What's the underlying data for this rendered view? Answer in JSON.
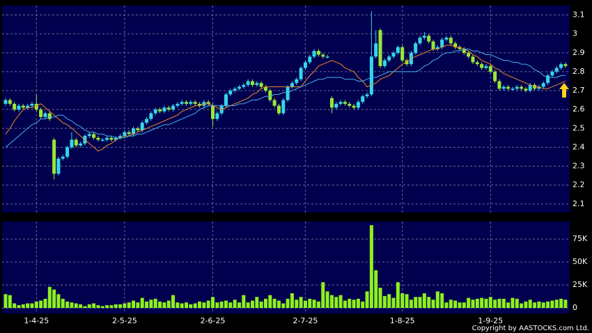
{
  "chart_data": [
    {
      "type": "candlestick",
      "categories": [
        null,
        null,
        null,
        null,
        null,
        null,
        null,
        "1-4-25",
        null,
        null,
        null,
        null,
        null,
        null,
        null,
        null,
        null,
        null,
        null,
        null,
        null,
        null,
        null,
        null,
        null,
        null,
        null,
        "2-5-25",
        null,
        null,
        null,
        null,
        null,
        null,
        null,
        null,
        null,
        null,
        null,
        null,
        null,
        null,
        null,
        null,
        null,
        null,
        null,
        "2-6-25",
        null,
        null,
        null,
        null,
        null,
        null,
        null,
        null,
        null,
        null,
        null,
        null,
        null,
        null,
        null,
        null,
        null,
        null,
        null,
        null,
        "2-7-25",
        null,
        null,
        null,
        null,
        null,
        null,
        null,
        null,
        null,
        null,
        null,
        null,
        null,
        null,
        null,
        null,
        null,
        null,
        null,
        null,
        null,
        "1-8-25",
        null,
        null,
        null,
        null,
        null,
        null,
        null,
        null,
        null,
        null,
        null,
        null,
        null,
        null,
        null,
        null,
        null,
        null,
        null,
        "1-9-25",
        null,
        null,
        null,
        null,
        null,
        null,
        null,
        null,
        null,
        null,
        null,
        null,
        null,
        null,
        null,
        null,
        null
      ],
      "open": [
        2.63,
        2.65,
        2.63,
        2.6,
        2.62,
        2.61,
        2.62,
        2.63,
        2.6,
        2.56,
        2.58,
        2.44,
        2.26,
        2.34,
        2.35,
        2.4,
        2.44,
        2.41,
        2.42,
        2.46,
        2.47,
        2.45,
        2.44,
        2.44,
        2.45,
        2.44,
        2.45,
        2.46,
        2.48,
        2.47,
        2.5,
        2.49,
        2.53,
        2.55,
        2.58,
        2.6,
        2.59,
        2.61,
        2.6,
        2.62,
        2.63,
        2.64,
        2.63,
        2.64,
        2.63,
        2.62,
        2.64,
        2.62,
        2.55,
        2.58,
        2.62,
        2.68,
        2.7,
        2.71,
        2.72,
        2.73,
        2.75,
        2.73,
        2.74,
        2.72,
        2.7,
        2.65,
        2.62,
        2.58,
        2.65,
        2.72,
        2.74,
        2.76,
        2.82,
        2.85,
        2.88,
        2.91,
        2.89,
        2.88,
        2.66,
        2.61,
        2.63,
        2.64,
        2.63,
        2.62,
        2.61,
        2.64,
        2.67,
        2.68,
        2.88,
        3.02,
        2.83,
        2.86,
        2.88,
        2.9,
        2.93,
        2.86,
        2.84,
        2.9,
        2.95,
        2.98,
        2.99,
        2.96,
        2.92,
        2.93,
        2.97,
        2.98,
        2.95,
        2.93,
        2.92,
        2.9,
        2.88,
        2.85,
        2.84,
        2.82,
        2.83,
        2.8,
        2.75,
        2.71,
        2.72,
        2.71,
        2.71,
        2.72,
        2.71,
        2.7,
        2.73,
        2.71,
        2.72,
        2.74,
        2.78,
        2.8,
        2.82,
        2.84
      ],
      "high": [
        2.66,
        2.66,
        2.64,
        2.63,
        2.63,
        2.63,
        2.64,
        2.68,
        2.61,
        2.59,
        2.59,
        2.45,
        2.35,
        2.36,
        2.41,
        2.48,
        2.45,
        2.43,
        2.47,
        2.48,
        2.48,
        2.46,
        2.45,
        2.46,
        2.46,
        2.46,
        2.47,
        2.49,
        2.49,
        2.51,
        2.51,
        2.54,
        2.56,
        2.59,
        2.61,
        2.61,
        2.62,
        2.62,
        2.63,
        2.64,
        2.65,
        2.65,
        2.65,
        2.65,
        2.64,
        2.65,
        2.65,
        2.63,
        2.59,
        2.63,
        2.69,
        2.71,
        2.72,
        2.73,
        2.74,
        2.76,
        2.76,
        2.75,
        2.75,
        2.73,
        2.71,
        2.66,
        2.63,
        2.66,
        2.73,
        2.75,
        2.77,
        2.83,
        2.86,
        2.89,
        2.92,
        2.92,
        2.9,
        2.89,
        2.67,
        2.64,
        2.65,
        2.65,
        2.64,
        2.63,
        2.65,
        2.68,
        2.69,
        3.12,
        3.02,
        3.03,
        2.87,
        2.89,
        2.91,
        2.94,
        2.94,
        2.87,
        2.91,
        2.96,
        2.99,
        3.01,
        3.0,
        2.97,
        2.94,
        2.98,
        2.99,
        2.99,
        2.96,
        2.94,
        2.93,
        2.91,
        2.89,
        2.86,
        2.85,
        2.84,
        2.84,
        2.81,
        2.76,
        2.73,
        2.73,
        2.72,
        2.73,
        2.73,
        2.72,
        2.74,
        2.74,
        2.73,
        2.75,
        2.79,
        2.81,
        2.83,
        2.85,
        2.85
      ],
      "low": [
        2.62,
        2.62,
        2.59,
        2.59,
        2.6,
        2.6,
        2.61,
        2.59,
        2.55,
        2.55,
        2.54,
        2.23,
        2.25,
        2.33,
        2.34,
        2.39,
        2.4,
        2.4,
        2.41,
        2.45,
        2.44,
        2.43,
        2.43,
        2.43,
        2.43,
        2.43,
        2.44,
        2.45,
        2.46,
        2.46,
        2.48,
        2.48,
        2.52,
        2.54,
        2.57,
        2.58,
        2.58,
        2.59,
        2.59,
        2.61,
        2.62,
        2.62,
        2.62,
        2.62,
        2.61,
        2.61,
        2.62,
        2.51,
        2.54,
        2.57,
        2.61,
        2.67,
        2.69,
        2.7,
        2.71,
        2.72,
        2.72,
        2.72,
        2.71,
        2.69,
        2.64,
        2.61,
        2.57,
        2.57,
        2.64,
        2.71,
        2.73,
        2.75,
        2.81,
        2.84,
        2.87,
        2.88,
        2.87,
        2.87,
        2.58,
        2.6,
        2.62,
        2.62,
        2.61,
        2.6,
        2.6,
        2.63,
        2.66,
        2.67,
        2.87,
        2.82,
        2.82,
        2.85,
        2.87,
        2.89,
        2.85,
        2.83,
        2.83,
        2.89,
        2.94,
        2.97,
        2.95,
        2.91,
        2.91,
        2.92,
        2.96,
        2.94,
        2.92,
        2.91,
        2.89,
        2.87,
        2.84,
        2.83,
        2.81,
        2.81,
        2.79,
        2.74,
        2.7,
        2.7,
        2.7,
        2.7,
        2.7,
        2.7,
        2.69,
        2.69,
        2.7,
        2.7,
        2.71,
        2.73,
        2.77,
        2.79,
        2.81,
        2.82
      ],
      "close": [
        2.65,
        2.63,
        2.6,
        2.62,
        2.61,
        2.62,
        2.63,
        2.6,
        2.56,
        2.58,
        2.55,
        2.26,
        2.34,
        2.35,
        2.4,
        2.44,
        2.41,
        2.42,
        2.46,
        2.47,
        2.45,
        2.44,
        2.44,
        2.45,
        2.44,
        2.45,
        2.46,
        2.48,
        2.47,
        2.5,
        2.49,
        2.53,
        2.55,
        2.58,
        2.6,
        2.59,
        2.61,
        2.6,
        2.62,
        2.63,
        2.64,
        2.63,
        2.64,
        2.63,
        2.62,
        2.64,
        2.63,
        2.55,
        2.58,
        2.62,
        2.68,
        2.7,
        2.71,
        2.72,
        2.73,
        2.75,
        2.73,
        2.74,
        2.72,
        2.7,
        2.65,
        2.62,
        2.58,
        2.65,
        2.72,
        2.74,
        2.76,
        2.82,
        2.85,
        2.88,
        2.91,
        2.89,
        2.88,
        2.88,
        2.61,
        2.63,
        2.64,
        2.63,
        2.62,
        2.61,
        2.64,
        2.67,
        2.68,
        2.88,
        2.95,
        2.83,
        2.86,
        2.88,
        2.9,
        2.93,
        2.86,
        2.84,
        2.9,
        2.95,
        2.98,
        2.99,
        2.96,
        2.92,
        2.93,
        2.97,
        2.98,
        2.95,
        2.93,
        2.92,
        2.9,
        2.88,
        2.85,
        2.84,
        2.82,
        2.83,
        2.8,
        2.75,
        2.71,
        2.72,
        2.71,
        2.71,
        2.72,
        2.71,
        2.7,
        2.73,
        2.71,
        2.72,
        2.74,
        2.78,
        2.8,
        2.82,
        2.84,
        2.83
      ],
      "up_color": "#35d6ec",
      "down_color": "#9be636",
      "series": [
        {
          "color": "#f08a24",
          "values": [
            2.47,
            2.5,
            2.54,
            2.57,
            2.6,
            2.61,
            2.61,
            2.62,
            2.63,
            2.61,
            2.59,
            2.57,
            2.55,
            2.53,
            2.52,
            2.5,
            2.48,
            2.46,
            2.44,
            2.42,
            2.4,
            2.38,
            2.39,
            2.41,
            2.42,
            2.44,
            2.45,
            2.46,
            2.46,
            2.47,
            2.48,
            2.49,
            2.5,
            2.51,
            2.52,
            2.53,
            2.54,
            2.55,
            2.56,
            2.57,
            2.59,
            2.6,
            2.61,
            2.62,
            2.62,
            2.63,
            2.63,
            2.62,
            2.61,
            2.6,
            2.61,
            2.62,
            2.63,
            2.64,
            2.65,
            2.66,
            2.68,
            2.69,
            2.71,
            2.72,
            2.72,
            2.72,
            2.72,
            2.72,
            2.72,
            2.72,
            2.72,
            2.72,
            2.75,
            2.78,
            2.8,
            2.83,
            2.84,
            2.85,
            2.86,
            2.85,
            2.84,
            2.82,
            2.81,
            2.8,
            2.77,
            2.75,
            2.72,
            2.73,
            2.74,
            2.76,
            2.77,
            2.78,
            2.8,
            2.82,
            2.84,
            2.85,
            2.87,
            2.88,
            2.89,
            2.9,
            2.91,
            2.92,
            2.92,
            2.93,
            2.94,
            2.94,
            2.93,
            2.93,
            2.92,
            2.91,
            2.89,
            2.88,
            2.86,
            2.85,
            2.84,
            2.82,
            2.81,
            2.79,
            2.78,
            2.77,
            2.76,
            2.75,
            2.74,
            2.73,
            2.72,
            2.72,
            2.71,
            2.71,
            2.72,
            2.73,
            2.74,
            2.75
          ]
        },
        {
          "color": "#4ab4ee",
          "values": [
            2.4,
            2.42,
            2.44,
            2.46,
            2.48,
            2.5,
            2.52,
            2.53,
            2.55,
            2.55,
            2.56,
            2.56,
            2.57,
            2.57,
            2.55,
            2.54,
            2.52,
            2.51,
            2.49,
            2.48,
            2.48,
            2.47,
            2.47,
            2.46,
            2.46,
            2.45,
            2.45,
            2.45,
            2.46,
            2.46,
            2.47,
            2.47,
            2.48,
            2.49,
            2.5,
            2.51,
            2.52,
            2.52,
            2.53,
            2.54,
            2.55,
            2.56,
            2.57,
            2.58,
            2.6,
            2.61,
            2.62,
            2.62,
            2.62,
            2.62,
            2.62,
            2.62,
            2.62,
            2.63,
            2.63,
            2.64,
            2.65,
            2.65,
            2.66,
            2.67,
            2.67,
            2.68,
            2.68,
            2.69,
            2.69,
            2.7,
            2.71,
            2.72,
            2.73,
            2.74,
            2.75,
            2.76,
            2.76,
            2.77,
            2.77,
            2.77,
            2.77,
            2.76,
            2.76,
            2.76,
            2.75,
            2.75,
            2.76,
            2.77,
            2.77,
            2.78,
            2.79,
            2.8,
            2.8,
            2.8,
            2.8,
            2.8,
            2.8,
            2.8,
            2.81,
            2.83,
            2.84,
            2.86,
            2.87,
            2.89,
            2.9,
            2.9,
            2.91,
            2.91,
            2.92,
            2.92,
            2.91,
            2.91,
            2.9,
            2.89,
            2.89,
            2.88,
            2.87,
            2.86,
            2.86,
            2.85,
            2.85,
            2.84,
            2.84,
            2.83,
            2.81,
            2.8,
            2.78,
            2.77,
            2.77,
            2.77,
            2.78,
            2.78
          ]
        }
      ],
      "ylim": [
        2.055,
        3.15
      ],
      "yticks": [
        2.1,
        2.2,
        2.3,
        2.4,
        2.5,
        2.6,
        2.7,
        2.8,
        2.9,
        3,
        3.1
      ],
      "grid": true
    },
    {
      "type": "bar",
      "values": [
        15000,
        14000,
        5000,
        3000,
        4000,
        5000,
        5000,
        7000,
        8000,
        10000,
        23000,
        20000,
        15000,
        10000,
        7000,
        6000,
        5000,
        4000,
        2000,
        4000,
        5000,
        3000,
        2000,
        3000,
        3000,
        4000,
        4000,
        5000,
        6000,
        8000,
        6000,
        11000,
        7000,
        9000,
        10000,
        7000,
        6000,
        8000,
        14000,
        6000,
        5000,
        6000,
        4000,
        5000,
        7000,
        6000,
        8000,
        12000,
        6000,
        7000,
        8000,
        6000,
        9000,
        6000,
        14000,
        6000,
        8000,
        12000,
        7000,
        10000,
        14000,
        10000,
        8000,
        5000,
        10000,
        16000,
        9000,
        12000,
        8000,
        10000,
        9000,
        7000,
        28000,
        18000,
        14000,
        12000,
        14000,
        8000,
        10000,
        9000,
        10000,
        7000,
        18000,
        90000,
        41000,
        22000,
        13000,
        15000,
        11000,
        28000,
        16000,
        15000,
        9000,
        12000,
        12000,
        16000,
        12000,
        9000,
        18000,
        16000,
        6000,
        9000,
        8000,
        6000,
        6000,
        11000,
        9000,
        10000,
        11000,
        10000,
        12000,
        9000,
        10000,
        10000,
        6000,
        11000,
        10000,
        5000,
        7000,
        9000,
        6000,
        7000,
        6000,
        7000,
        8000,
        9000,
        10000,
        9000
      ],
      "color": "#8ef01e",
      "ylim": [
        -6000,
        94000
      ],
      "yticks": [
        0,
        {
          "value": 25000,
          "label": "25K"
        },
        {
          "value": 50000,
          "label": "50K"
        },
        {
          "value": 75000,
          "label": "75K"
        }
      ],
      "grid": true
    }
  ],
  "copyright": "Copyright by AASTOCKS.com Ltd."
}
